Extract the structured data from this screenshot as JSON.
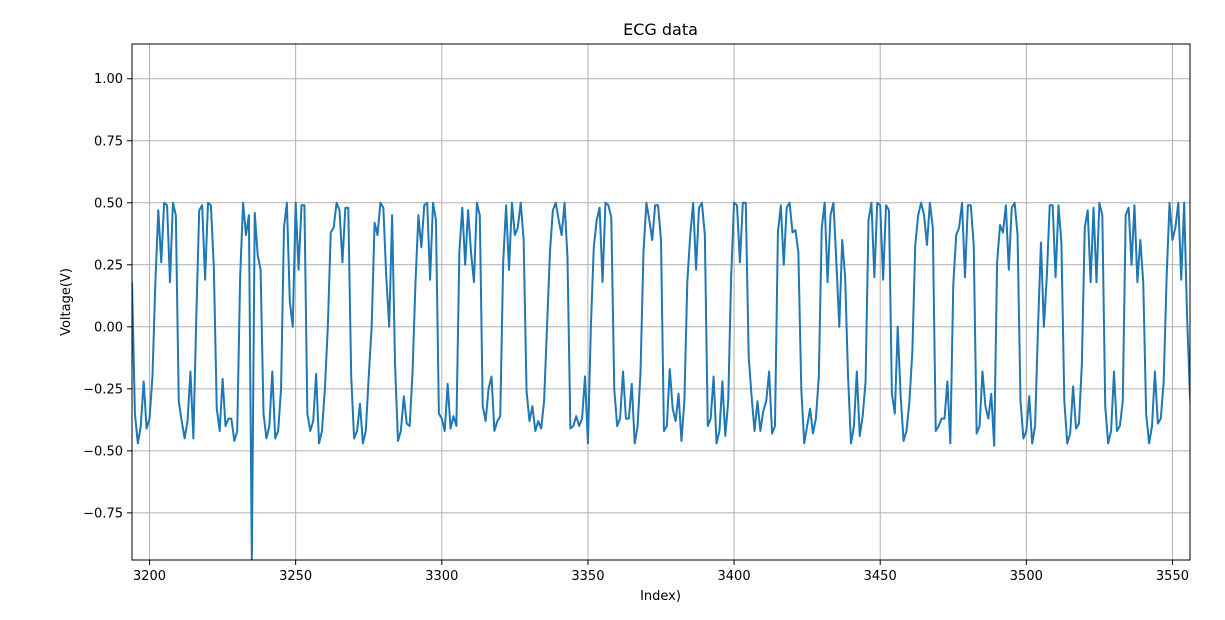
{
  "chart_data": {
    "type": "line",
    "title": "ECG data",
    "xlabel": "Index)",
    "ylabel": "Voltage(V)",
    "xlim": [
      3194,
      3556
    ],
    "ylim": [
      -0.94,
      1.14
    ],
    "xticks": [
      3200,
      3250,
      3300,
      3350,
      3400,
      3450,
      3500,
      3550
    ],
    "xtick_labels": [
      "3200",
      "3250",
      "3300",
      "3350",
      "3400",
      "3450",
      "3500",
      "3550"
    ],
    "yticks": [
      -0.75,
      -0.5,
      -0.25,
      0.0,
      0.25,
      0.5,
      0.75,
      1.0
    ],
    "ytick_labels": [
      "−0.75",
      "−0.50",
      "−0.25",
      "0.00",
      "0.25",
      "0.50",
      "0.75",
      "1.00"
    ],
    "grid": true,
    "series": [
      {
        "color": "#1f77b4",
        "x_start": 3194,
        "x_step": 1,
        "values": [
          0.18,
          -0.35,
          -0.47,
          -0.4,
          -0.22,
          -0.41,
          -0.37,
          -0.2,
          0.18,
          0.47,
          0.26,
          0.5,
          0.49,
          0.18,
          0.5,
          0.45,
          -0.3,
          -0.38,
          -0.45,
          -0.38,
          -0.18,
          -0.45,
          0.04,
          0.47,
          0.49,
          0.19,
          0.5,
          0.49,
          0.24,
          -0.33,
          -0.42,
          -0.21,
          -0.4,
          -0.37,
          -0.37,
          -0.46,
          -0.42,
          0.2,
          0.5,
          0.37,
          0.45,
          -0.94,
          0.46,
          0.29,
          0.23,
          -0.35,
          -0.45,
          -0.4,
          -0.18,
          -0.45,
          -0.42,
          -0.25,
          0.4,
          0.5,
          0.1,
          0.0,
          0.5,
          0.23,
          0.49,
          0.49,
          -0.35,
          -0.42,
          -0.38,
          -0.19,
          -0.47,
          -0.42,
          -0.25,
          0.0,
          0.38,
          0.4,
          0.5,
          0.47,
          0.26,
          0.48,
          0.48,
          -0.2,
          -0.45,
          -0.42,
          -0.31,
          -0.47,
          -0.42,
          -0.2,
          0.0,
          0.42,
          0.37,
          0.5,
          0.48,
          0.2,
          0.0,
          0.45,
          -0.15,
          -0.46,
          -0.42,
          -0.28,
          -0.39,
          -0.4,
          -0.18,
          0.18,
          0.45,
          0.32,
          0.49,
          0.5,
          0.19,
          0.5,
          0.43,
          -0.35,
          -0.37,
          -0.42,
          -0.23,
          -0.41,
          -0.36,
          -0.4,
          0.3,
          0.48,
          0.25,
          0.47,
          0.3,
          0.18,
          0.5,
          0.45,
          -0.32,
          -0.38,
          -0.25,
          -0.2,
          -0.42,
          -0.38,
          -0.36,
          0.26,
          0.49,
          0.23,
          0.5,
          0.37,
          0.4,
          0.5,
          0.35,
          -0.26,
          -0.38,
          -0.32,
          -0.42,
          -0.38,
          -0.41,
          -0.3,
          0.0,
          0.3,
          0.47,
          0.5,
          0.43,
          0.37,
          0.5,
          0.28,
          -0.41,
          -0.4,
          -0.36,
          -0.4,
          -0.37,
          -0.2,
          -0.47,
          0.0,
          0.32,
          0.43,
          0.48,
          0.18,
          0.5,
          0.49,
          0.44,
          -0.25,
          -0.4,
          -0.37,
          -0.18,
          -0.37,
          -0.37,
          -0.23,
          -0.47,
          -0.4,
          -0.18,
          0.3,
          0.5,
          0.43,
          0.35,
          0.49,
          0.49,
          0.35,
          -0.42,
          -0.4,
          -0.17,
          -0.33,
          -0.38,
          -0.27,
          -0.46,
          -0.3,
          0.18,
          0.37,
          0.5,
          0.23,
          0.48,
          0.5,
          0.37,
          -0.4,
          -0.37,
          -0.2,
          -0.47,
          -0.42,
          -0.22,
          -0.44,
          -0.3,
          0.2,
          0.5,
          0.49,
          0.26,
          0.5,
          0.5,
          -0.12,
          -0.28,
          -0.42,
          -0.3,
          -0.42,
          -0.34,
          -0.3,
          -0.18,
          -0.43,
          -0.4,
          0.38,
          0.49,
          0.25,
          0.48,
          0.5,
          0.38,
          0.39,
          0.3,
          -0.25,
          -0.47,
          -0.4,
          -0.33,
          -0.43,
          -0.37,
          -0.2,
          0.4,
          0.5,
          0.18,
          0.45,
          0.5,
          0.26,
          0.0,
          0.35,
          0.2,
          -0.2,
          -0.47,
          -0.4,
          -0.18,
          -0.44,
          -0.36,
          -0.22,
          0.43,
          0.5,
          0.2,
          0.5,
          0.49,
          0.19,
          0.49,
          0.47,
          -0.27,
          -0.35,
          0.0,
          -0.28,
          -0.46,
          -0.42,
          -0.3,
          -0.1,
          0.33,
          0.45,
          0.5,
          0.45,
          0.33,
          0.5,
          0.4,
          -0.42,
          -0.4,
          -0.37,
          -0.37,
          -0.22,
          -0.47,
          0.17,
          0.37,
          0.4,
          0.5,
          0.2,
          0.49,
          0.49,
          0.33,
          -0.43,
          -0.4,
          -0.18,
          -0.32,
          -0.37,
          -0.27,
          -0.48,
          0.26,
          0.41,
          0.38,
          0.49,
          0.23,
          0.48,
          0.5,
          0.37,
          -0.3,
          -0.45,
          -0.42,
          -0.28,
          -0.47,
          -0.4,
          0.0,
          0.34,
          0.0,
          0.2,
          0.49,
          0.49,
          0.2,
          0.49,
          0.34,
          -0.3,
          -0.47,
          -0.43,
          -0.24,
          -0.41,
          -0.39,
          -0.15,
          0.4,
          0.47,
          0.18,
          0.48,
          0.18,
          0.5,
          0.45,
          -0.32,
          -0.47,
          -0.42,
          -0.18,
          -0.42,
          -0.4,
          -0.3,
          0.45,
          0.48,
          0.25,
          0.49,
          0.18,
          0.35,
          0.18,
          -0.35,
          -0.47,
          -0.4,
          -0.18,
          -0.39,
          -0.37,
          -0.22,
          0.2,
          0.5,
          0.35,
          0.4,
          0.5,
          0.19,
          0.5,
          0.04,
          -0.28,
          -0.45
        ]
      }
    ]
  }
}
